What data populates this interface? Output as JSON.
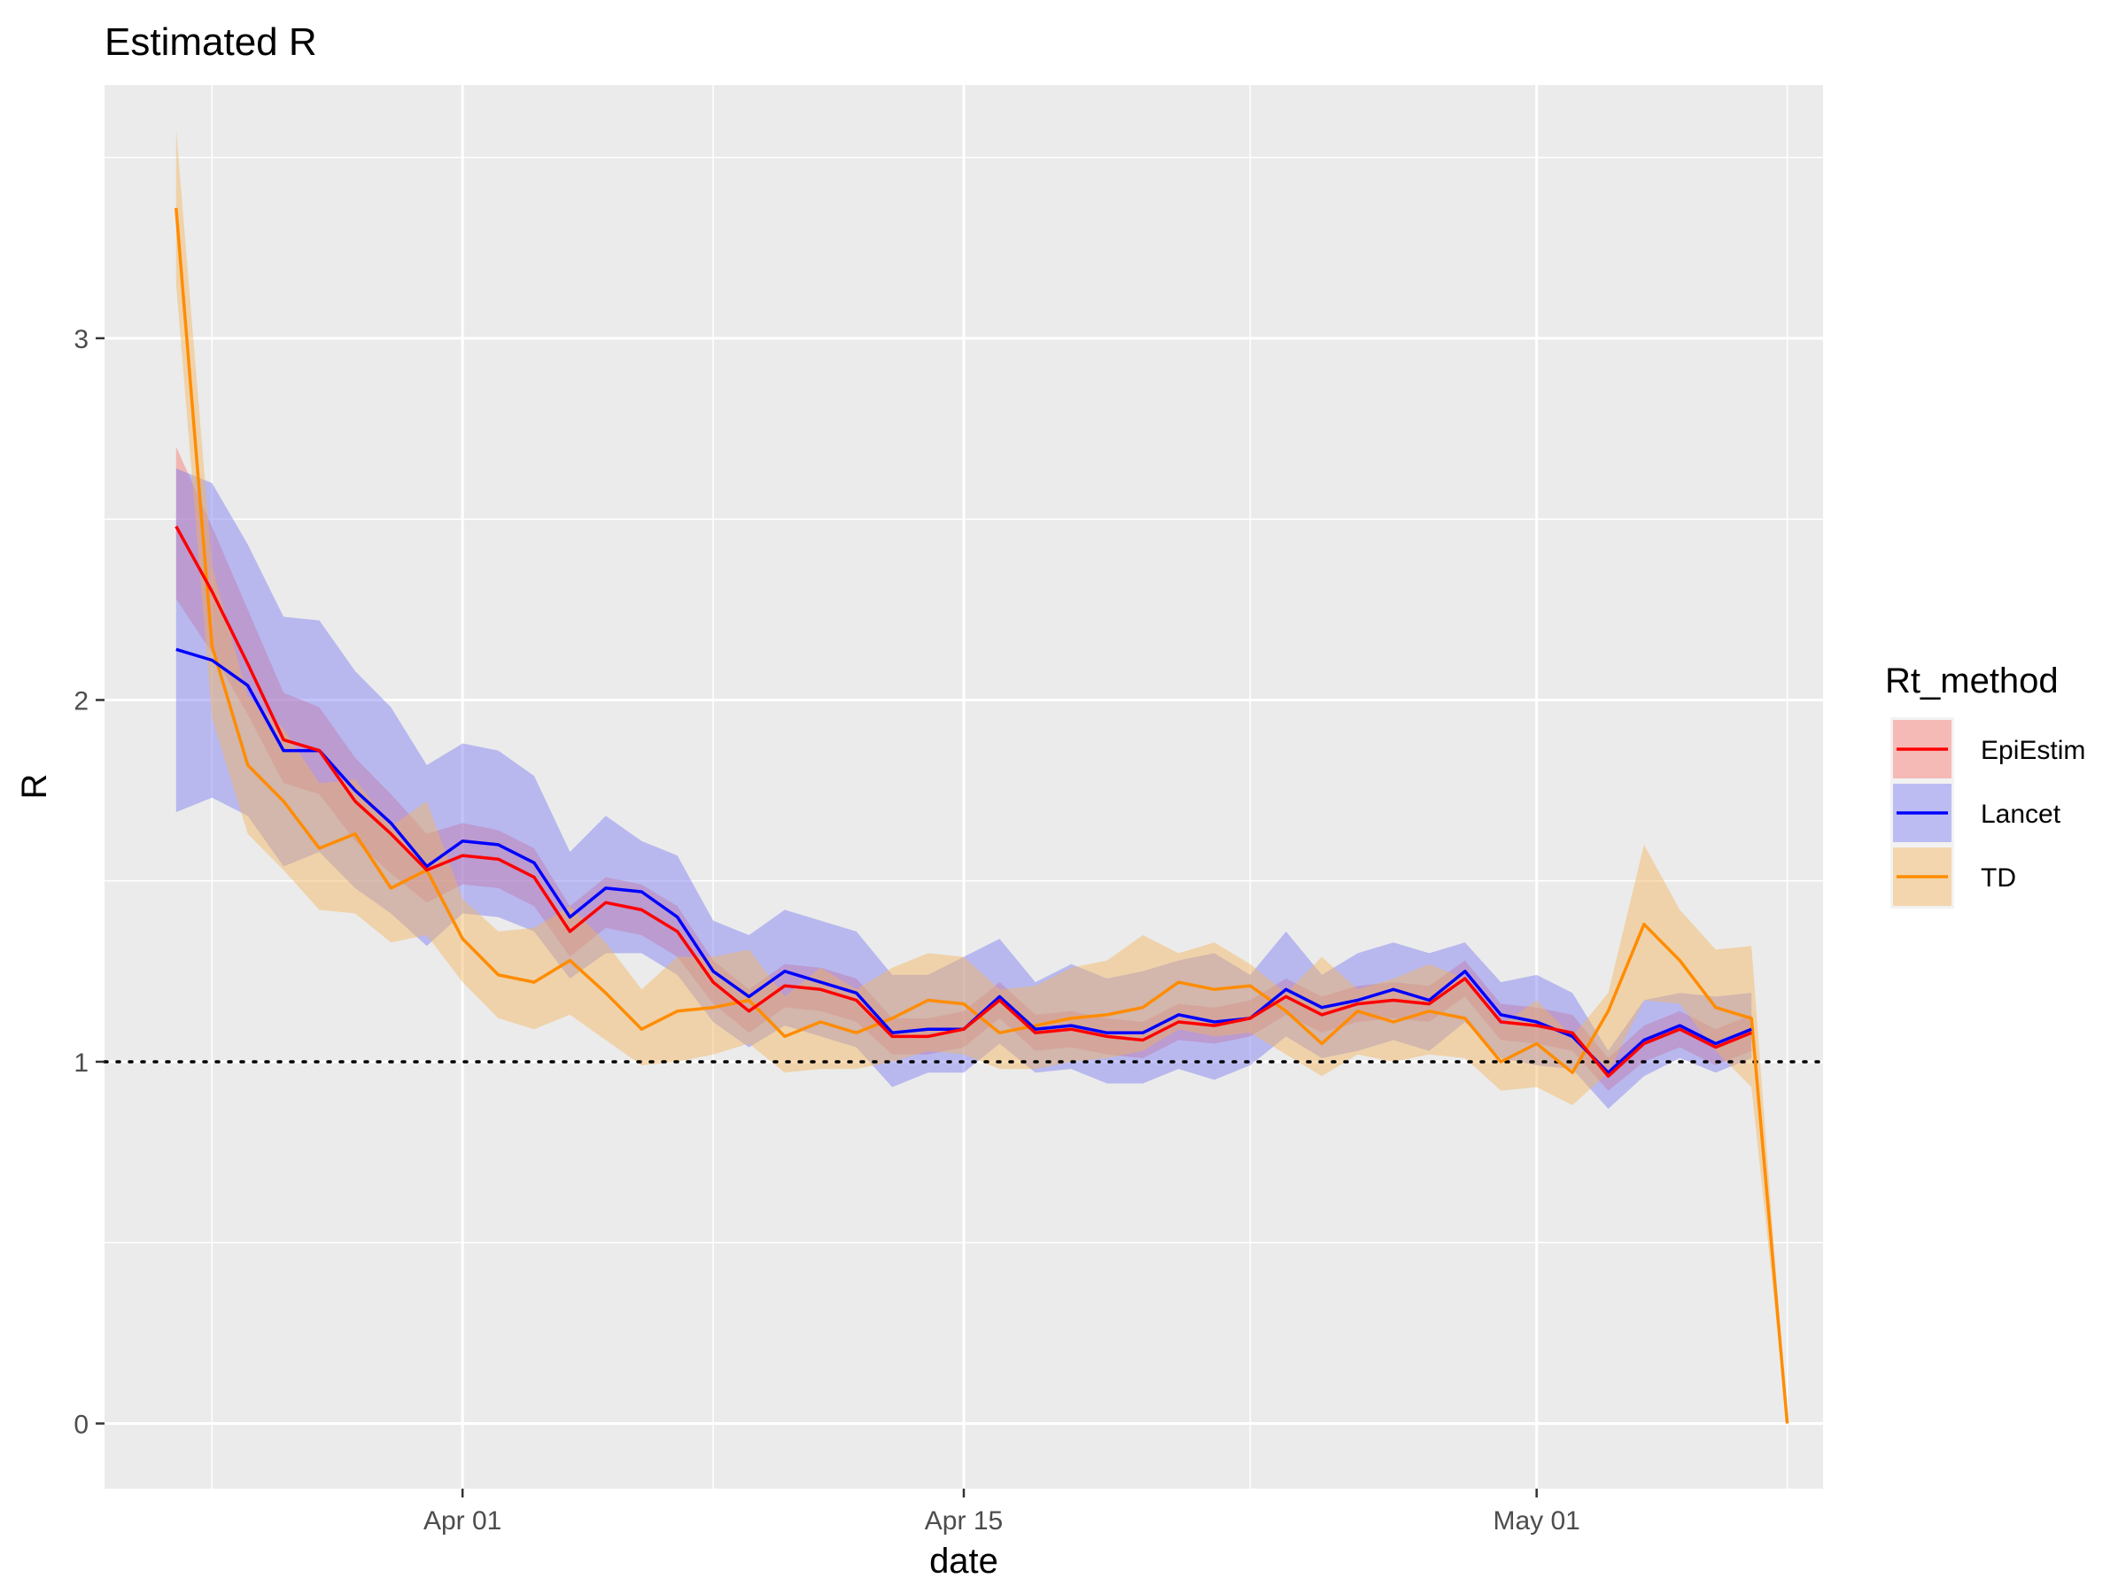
{
  "chart_data": {
    "type": "line",
    "title": "Estimated R",
    "xlabel": "date",
    "ylabel": "R",
    "x_tick_labels": [
      {
        "date": "2020-04-01",
        "label": "Apr 01"
      },
      {
        "date": "2020-04-15",
        "label": "Apr 15"
      },
      {
        "date": "2020-05-01",
        "label": "May 01"
      }
    ],
    "xlim": [
      "2020-03-22",
      "2020-05-09"
    ],
    "ylim": [
      -0.18,
      3.7
    ],
    "y_ticks": [
      0,
      1,
      2,
      3
    ],
    "y_tick_labels": [
      "0",
      "1",
      "2",
      "3"
    ],
    "reference_line": {
      "y": 1,
      "style": "dotted"
    },
    "grid": true,
    "legend": {
      "title": "Rt_method",
      "placement": "right"
    },
    "x": [
      "2020-03-24",
      "2020-03-25",
      "2020-03-26",
      "2020-03-27",
      "2020-03-28",
      "2020-03-29",
      "2020-03-30",
      "2020-03-31",
      "2020-04-01",
      "2020-04-02",
      "2020-04-03",
      "2020-04-04",
      "2020-04-05",
      "2020-04-06",
      "2020-04-07",
      "2020-04-08",
      "2020-04-09",
      "2020-04-10",
      "2020-04-11",
      "2020-04-12",
      "2020-04-13",
      "2020-04-14",
      "2020-04-15",
      "2020-04-16",
      "2020-04-17",
      "2020-04-18",
      "2020-04-19",
      "2020-04-20",
      "2020-04-21",
      "2020-04-22",
      "2020-04-23",
      "2020-04-24",
      "2020-04-25",
      "2020-04-26",
      "2020-04-27",
      "2020-04-28",
      "2020-04-29",
      "2020-04-30",
      "2020-05-01",
      "2020-05-02",
      "2020-05-03",
      "2020-05-04",
      "2020-05-05",
      "2020-05-06",
      "2020-05-07",
      "2020-05-08"
    ],
    "series": [
      {
        "name": "EpiEstim",
        "color": "#ff0000",
        "band_color": "#f8766d",
        "values": [
          2.48,
          2.3,
          2.1,
          1.89,
          1.86,
          1.72,
          1.63,
          1.53,
          1.57,
          1.56,
          1.51,
          1.36,
          1.44,
          1.42,
          1.36,
          1.22,
          1.14,
          1.21,
          1.2,
          1.17,
          1.07,
          1.07,
          1.09,
          1.17,
          1.08,
          1.09,
          1.07,
          1.06,
          1.11,
          1.1,
          1.12,
          1.18,
          1.13,
          1.16,
          1.17,
          1.16,
          1.23,
          1.11,
          1.1,
          1.08,
          0.96,
          1.05,
          1.09,
          1.04,
          1.08,
          null
        ],
        "lower": [
          2.28,
          2.13,
          1.96,
          1.77,
          1.74,
          1.61,
          1.52,
          1.44,
          1.49,
          1.48,
          1.43,
          1.29,
          1.37,
          1.35,
          1.29,
          1.16,
          1.08,
          1.15,
          1.14,
          1.11,
          1.02,
          1.02,
          1.04,
          1.12,
          1.03,
          1.04,
          1.02,
          1.01,
          1.06,
          1.05,
          1.07,
          1.13,
          1.08,
          1.11,
          1.12,
          1.11,
          1.18,
          1.06,
          1.05,
          1.03,
          0.92,
          1.0,
          1.04,
          0.99,
          1.03,
          null
        ],
        "upper": [
          2.7,
          2.48,
          2.25,
          2.02,
          1.98,
          1.84,
          1.74,
          1.63,
          1.66,
          1.64,
          1.59,
          1.43,
          1.51,
          1.49,
          1.43,
          1.28,
          1.2,
          1.27,
          1.26,
          1.23,
          1.12,
          1.12,
          1.14,
          1.22,
          1.13,
          1.14,
          1.12,
          1.11,
          1.16,
          1.15,
          1.17,
          1.23,
          1.18,
          1.21,
          1.22,
          1.21,
          1.28,
          1.16,
          1.15,
          1.13,
          1.01,
          1.1,
          1.14,
          1.09,
          1.13,
          null
        ]
      },
      {
        "name": "Lancet",
        "color": "#0000ff",
        "band_color": "#7b7bf5",
        "values": [
          2.14,
          2.11,
          2.04,
          1.86,
          1.86,
          1.75,
          1.66,
          1.54,
          1.61,
          1.6,
          1.55,
          1.4,
          1.48,
          1.47,
          1.4,
          1.25,
          1.18,
          1.25,
          1.22,
          1.19,
          1.08,
          1.09,
          1.09,
          1.18,
          1.09,
          1.1,
          1.08,
          1.08,
          1.13,
          1.11,
          1.12,
          1.2,
          1.15,
          1.17,
          1.2,
          1.17,
          1.25,
          1.13,
          1.11,
          1.07,
          0.97,
          1.06,
          1.1,
          1.05,
          1.09,
          null
        ],
        "lower": [
          1.69,
          1.73,
          1.68,
          1.54,
          1.58,
          1.48,
          1.41,
          1.32,
          1.41,
          1.4,
          1.36,
          1.23,
          1.3,
          1.3,
          1.24,
          1.11,
          1.04,
          1.1,
          1.07,
          1.04,
          0.93,
          0.97,
          0.97,
          1.05,
          0.97,
          0.98,
          0.94,
          0.94,
          0.98,
          0.95,
          0.99,
          1.07,
          1.01,
          1.03,
          1.06,
          1.03,
          1.11,
          1.01,
          0.99,
          0.98,
          0.87,
          0.96,
          1.01,
          0.97,
          1.01,
          null
        ],
        "upper": [
          2.64,
          2.6,
          2.43,
          2.23,
          2.22,
          2.08,
          1.98,
          1.82,
          1.88,
          1.86,
          1.79,
          1.58,
          1.68,
          1.61,
          1.57,
          1.39,
          1.35,
          1.42,
          1.39,
          1.36,
          1.24,
          1.24,
          1.29,
          1.34,
          1.22,
          1.27,
          1.23,
          1.25,
          1.28,
          1.3,
          1.24,
          1.36,
          1.24,
          1.3,
          1.33,
          1.3,
          1.33,
          1.22,
          1.24,
          1.19,
          1.03,
          1.17,
          1.19,
          1.18,
          1.19,
          null
        ]
      },
      {
        "name": "TD",
        "color": "#ff8c00",
        "band_color": "#f5b45a",
        "values": [
          3.36,
          2.15,
          1.82,
          1.72,
          1.59,
          1.63,
          1.48,
          1.53,
          1.34,
          1.24,
          1.22,
          1.28,
          1.19,
          1.09,
          1.14,
          1.15,
          1.17,
          1.07,
          1.11,
          1.08,
          1.12,
          1.17,
          1.16,
          1.08,
          1.1,
          1.12,
          1.13,
          1.15,
          1.22,
          1.2,
          1.21,
          1.14,
          1.05,
          1.14,
          1.11,
          1.14,
          1.12,
          1.0,
          1.05,
          0.97,
          1.14,
          1.38,
          1.28,
          1.15,
          1.12,
          0.0
        ],
        "lower": [
          3.15,
          1.95,
          1.63,
          1.53,
          1.42,
          1.41,
          1.33,
          1.35,
          1.22,
          1.12,
          1.09,
          1.13,
          1.06,
          0.99,
          1.0,
          1.02,
          1.05,
          0.97,
          0.98,
          0.98,
          1.0,
          1.03,
          1.02,
          0.98,
          0.98,
          1.0,
          1.01,
          1.03,
          1.09,
          1.07,
          1.08,
          1.02,
          0.96,
          1.02,
          1.0,
          1.02,
          1.01,
          0.92,
          0.93,
          0.88,
          0.97,
          1.17,
          1.16,
          1.03,
          0.93,
          0.0
        ],
        "upper": [
          3.58,
          2.37,
          2.01,
          1.92,
          1.77,
          1.78,
          1.65,
          1.72,
          1.45,
          1.36,
          1.37,
          1.43,
          1.33,
          1.2,
          1.29,
          1.29,
          1.31,
          1.18,
          1.26,
          1.2,
          1.26,
          1.3,
          1.29,
          1.2,
          1.21,
          1.26,
          1.28,
          1.35,
          1.3,
          1.33,
          1.27,
          1.19,
          1.29,
          1.2,
          1.23,
          1.27,
          1.23,
          1.1,
          1.17,
          1.07,
          1.19,
          1.6,
          1.42,
          1.31,
          1.32,
          0.0
        ]
      }
    ]
  }
}
